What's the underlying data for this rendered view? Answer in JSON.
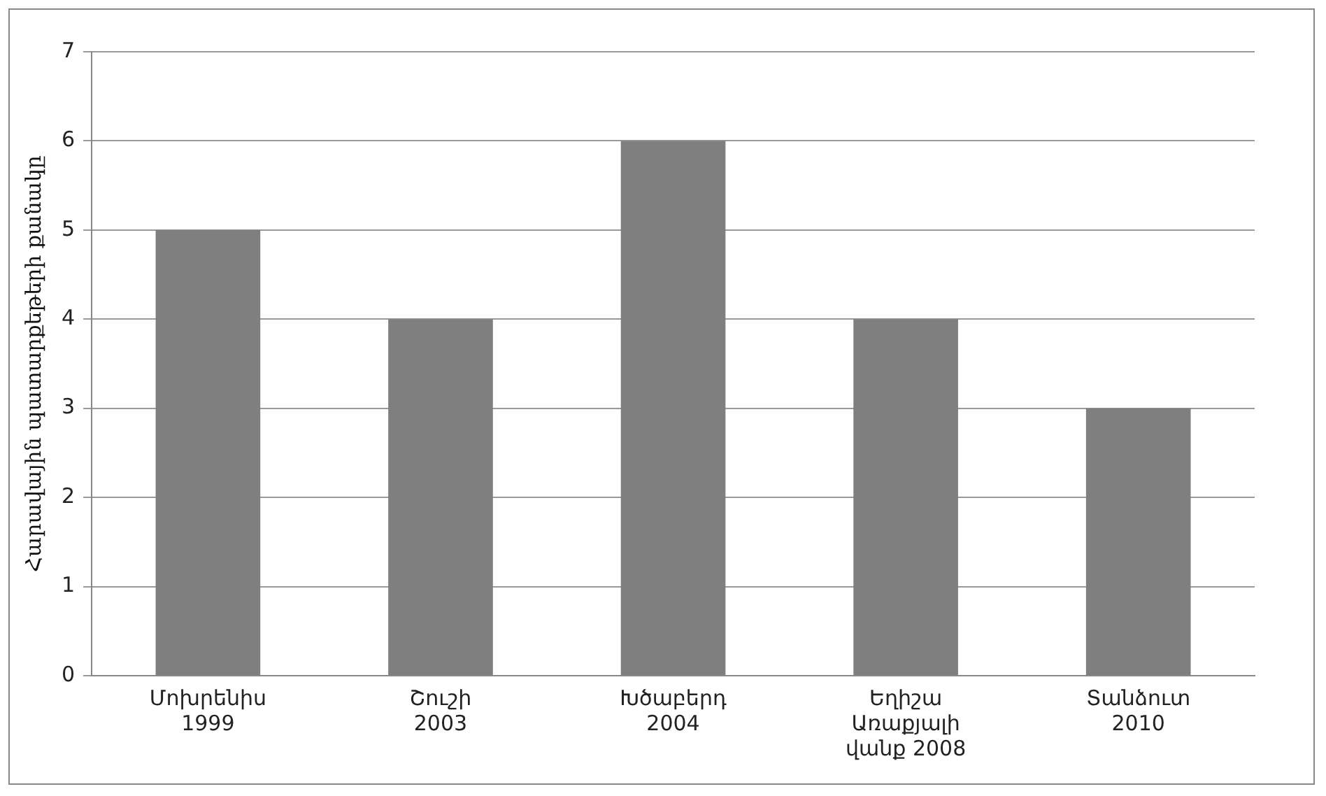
{
  "chart_data": {
    "type": "bar",
    "ylabel": "Հարավային պատարքեթերի քանակը",
    "categories": [
      "Մոխրենիս 1999",
      "Շուշի 2003",
      "Խծաբերդ 2004",
      "Եղիշա Առաքյալի վանք 2008",
      "Տանձուտ 2010"
    ],
    "values": [
      5,
      4,
      6,
      4,
      3
    ],
    "color": "#7f7f7f",
    "ylim": [
      0,
      7
    ],
    "yticks": [
      0,
      1,
      2,
      3,
      4,
      5,
      6,
      7
    ],
    "grid": "y"
  }
}
